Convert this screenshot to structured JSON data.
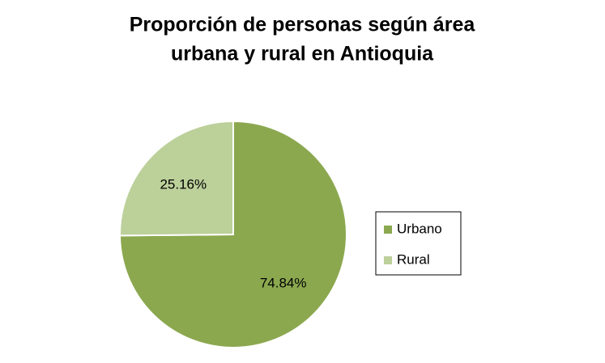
{
  "chart_data": {
    "type": "pie",
    "title": [
      "Proporción de personas según área",
      "urbana y rural en Antioquia"
    ],
    "categories": [
      "Urbano",
      "Rural"
    ],
    "values": [
      74.84,
      25.16
    ],
    "value_labels": [
      "74.84%",
      "25.16%"
    ],
    "colors": [
      "#8ba84f",
      "#bcd09a"
    ],
    "legend": "right"
  }
}
